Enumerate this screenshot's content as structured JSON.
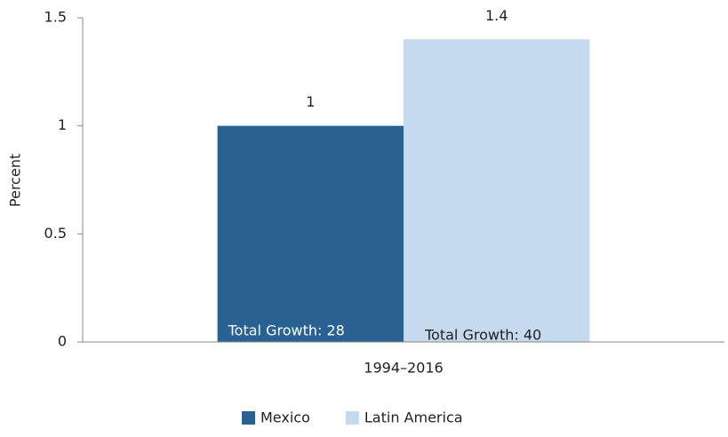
{
  "chart_data": {
    "type": "bar",
    "y_label": "Percent",
    "categories": [
      "1994–2016"
    ],
    "series": [
      {
        "name": "Mexico",
        "color": "#286192",
        "values": [
          1
        ],
        "annotation": "Total Growth: 28"
      },
      {
        "name": "Latin America",
        "color": "#c5daef",
        "values": [
          1.4
        ],
        "annotation": "Total Growth: 40"
      }
    ],
    "ylim": [
      0,
      1.5
    ],
    "yticks": [
      0,
      0.5,
      1,
      1.5
    ],
    "grid": false,
    "legend": "bottom"
  }
}
